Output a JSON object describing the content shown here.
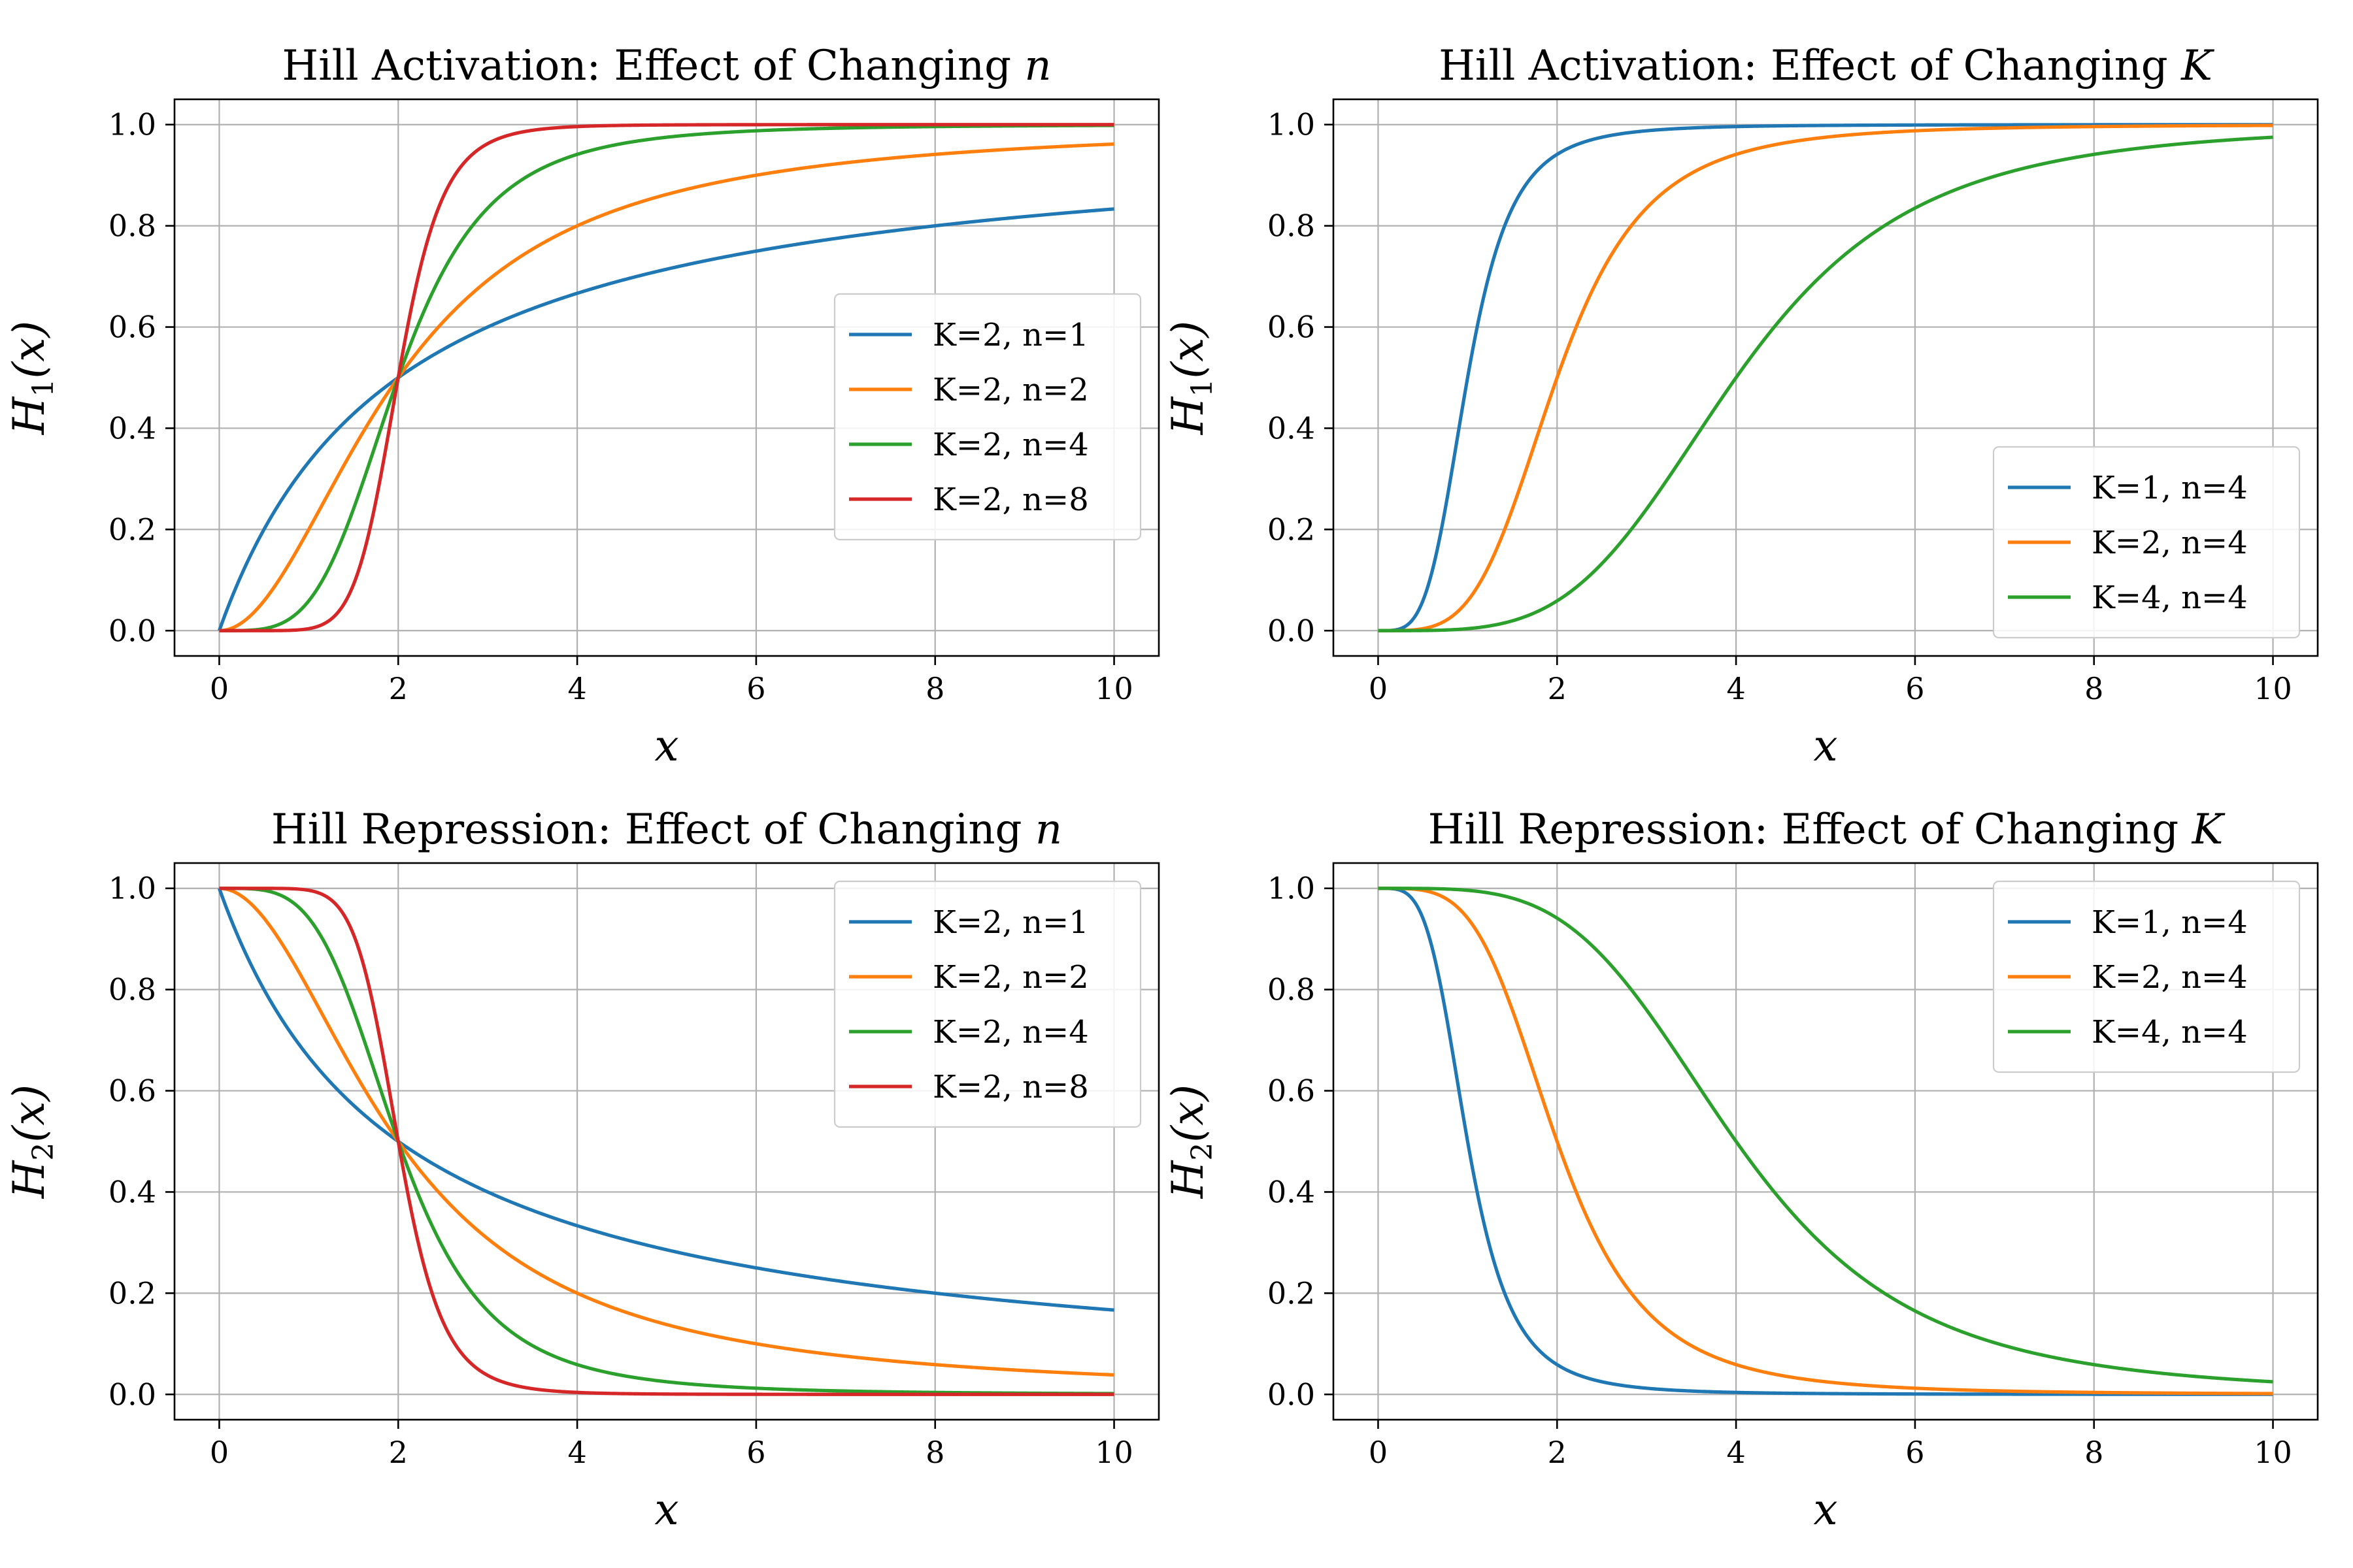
{
  "chart_data": [
    {
      "type": "line",
      "title_prefix": "Hill Activation: Effect of Changing ",
      "title_var": "n",
      "xlabel": "x",
      "ylabel_main": "H",
      "ylabel_sub": "1",
      "ylabel_arg": "(x)",
      "function": "activation",
      "xlim": [
        -0.5,
        10.5
      ],
      "ylim": [
        -0.05,
        1.05
      ],
      "xticks": [
        0,
        2,
        4,
        6,
        8,
        10
      ],
      "yticks": [
        0.0,
        0.2,
        0.4,
        0.6,
        0.8,
        1.0
      ],
      "ytick_labels": [
        "0.0",
        "0.2",
        "0.4",
        "0.6",
        "0.8",
        "1.0"
      ],
      "grid": true,
      "legend_position": "center-right",
      "series": [
        {
          "name": "K=2, n=1",
          "K": 2,
          "n": 1,
          "color": "#1f77b4"
        },
        {
          "name": "K=2, n=2",
          "K": 2,
          "n": 2,
          "color": "#ff7f0e"
        },
        {
          "name": "K=2, n=4",
          "K": 2,
          "n": 4,
          "color": "#2ca02c"
        },
        {
          "name": "K=2, n=8",
          "K": 2,
          "n": 8,
          "color": "#d62728"
        }
      ]
    },
    {
      "type": "line",
      "title_prefix": "Hill Activation: Effect of Changing ",
      "title_var": "K",
      "xlabel": "x",
      "ylabel_main": "H",
      "ylabel_sub": "1",
      "ylabel_arg": "(x)",
      "function": "activation",
      "xlim": [
        -0.5,
        10.5
      ],
      "ylim": [
        -0.05,
        1.05
      ],
      "xticks": [
        0,
        2,
        4,
        6,
        8,
        10
      ],
      "yticks": [
        0.0,
        0.2,
        0.4,
        0.6,
        0.8,
        1.0
      ],
      "ytick_labels": [
        "0.0",
        "0.2",
        "0.4",
        "0.6",
        "0.8",
        "1.0"
      ],
      "grid": true,
      "legend_position": "lower-right",
      "series": [
        {
          "name": "K=1, n=4",
          "K": 1,
          "n": 4,
          "color": "#1f77b4"
        },
        {
          "name": "K=2, n=4",
          "K": 2,
          "n": 4,
          "color": "#ff7f0e"
        },
        {
          "name": "K=4, n=4",
          "K": 4,
          "n": 4,
          "color": "#2ca02c"
        }
      ]
    },
    {
      "type": "line",
      "title_prefix": "Hill Repression: Effect of Changing ",
      "title_var": "n",
      "xlabel": "x",
      "ylabel_main": "H",
      "ylabel_sub": "2",
      "ylabel_arg": "(x)",
      "function": "repression",
      "xlim": [
        -0.5,
        10.5
      ],
      "ylim": [
        -0.05,
        1.05
      ],
      "xticks": [
        0,
        2,
        4,
        6,
        8,
        10
      ],
      "yticks": [
        0.0,
        0.2,
        0.4,
        0.6,
        0.8,
        1.0
      ],
      "ytick_labels": [
        "0.0",
        "0.2",
        "0.4",
        "0.6",
        "0.8",
        "1.0"
      ],
      "grid": true,
      "legend_position": "upper-right",
      "series": [
        {
          "name": "K=2, n=1",
          "K": 2,
          "n": 1,
          "color": "#1f77b4"
        },
        {
          "name": "K=2, n=2",
          "K": 2,
          "n": 2,
          "color": "#ff7f0e"
        },
        {
          "name": "K=2, n=4",
          "K": 2,
          "n": 4,
          "color": "#2ca02c"
        },
        {
          "name": "K=2, n=8",
          "K": 2,
          "n": 8,
          "color": "#d62728"
        }
      ]
    },
    {
      "type": "line",
      "title_prefix": "Hill Repression: Effect of Changing ",
      "title_var": "K",
      "xlabel": "x",
      "ylabel_main": "H",
      "ylabel_sub": "2",
      "ylabel_arg": "(x)",
      "function": "repression",
      "xlim": [
        -0.5,
        10.5
      ],
      "ylim": [
        -0.05,
        1.05
      ],
      "xticks": [
        0,
        2,
        4,
        6,
        8,
        10
      ],
      "yticks": [
        0.0,
        0.2,
        0.4,
        0.6,
        0.8,
        1.0
      ],
      "ytick_labels": [
        "0.0",
        "0.2",
        "0.4",
        "0.6",
        "0.8",
        "1.0"
      ],
      "grid": true,
      "legend_position": "upper-right",
      "series": [
        {
          "name": "K=1, n=4",
          "K": 1,
          "n": 4,
          "color": "#1f77b4"
        },
        {
          "name": "K=2, n=4",
          "K": 2,
          "n": 4,
          "color": "#ff7f0e"
        },
        {
          "name": "K=4, n=4",
          "K": 4,
          "n": 4,
          "color": "#2ca02c"
        }
      ]
    }
  ]
}
